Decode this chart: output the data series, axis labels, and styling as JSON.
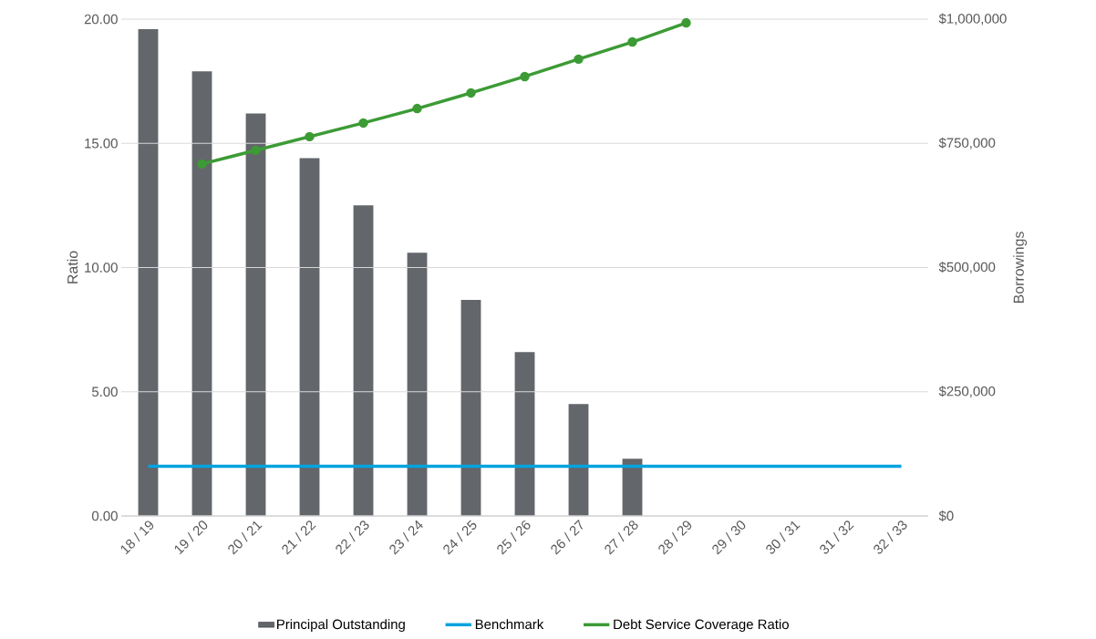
{
  "chart_data": {
    "type": "bar",
    "categories": [
      "18 / 19",
      "19 / 20",
      "20 / 21",
      "21 / 22",
      "22 / 23",
      "23 / 24",
      "24 / 25",
      "25 / 26",
      "26 / 27",
      "27 / 28",
      "28 / 29",
      "29 / 30",
      "30 / 31",
      "31 / 32",
      "32 / 33"
    ],
    "series": [
      {
        "name": "Principal Outstanding",
        "axis": "y2",
        "color": "#63666a",
        "values": [
          980000,
          895000,
          810000,
          720000,
          625000,
          530000,
          435000,
          330000,
          225000,
          115000,
          null,
          null,
          null,
          null,
          null
        ]
      },
      {
        "name": "Benchmark",
        "type": "line",
        "color": "#00a3e0",
        "marker": "none",
        "values": [
          2.0,
          2.0,
          2.0,
          2.0,
          2.0,
          2.0,
          2.0,
          2.0,
          2.0,
          2.0,
          2.0,
          2.0,
          2.0,
          2.0,
          2.0
        ]
      },
      {
        "name": "Debt Service Coverage Ratio",
        "type": "line",
        "color": "#3c9b35",
        "marker": "circle",
        "values": [
          null,
          14.17,
          14.72,
          15.27,
          15.82,
          16.4,
          17.03,
          17.69,
          18.39,
          19.08,
          19.85,
          null,
          null,
          null,
          null
        ]
      }
    ],
    "ylabel": "Ratio",
    "y2label": "Borrowings",
    "ylim": [
      0,
      20
    ],
    "yticks": [
      {
        "value": 0,
        "label": "0.00"
      },
      {
        "value": 5,
        "label": "5.00"
      },
      {
        "value": 10,
        "label": "10.00"
      },
      {
        "value": 15,
        "label": "15.00"
      },
      {
        "value": 20,
        "label": "20.00"
      }
    ],
    "y2lim": [
      0,
      1000000
    ],
    "y2ticks": [
      {
        "value": 0,
        "label": "$0"
      },
      {
        "value": 250000,
        "label": "$250,000"
      },
      {
        "value": 500000,
        "label": "$500,000"
      },
      {
        "value": 750000,
        "label": "$750,000"
      },
      {
        "value": 1000000,
        "label": "$1,000,000"
      }
    ],
    "grid": "y",
    "legend": "bottom"
  }
}
